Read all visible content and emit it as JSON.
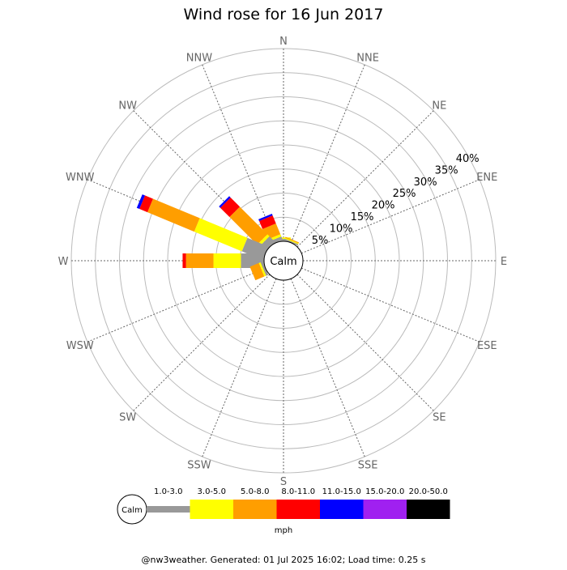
{
  "chart_data": {
    "type": "windrose",
    "title": "Wind rose for 16 Jun 2017",
    "directions": [
      "N",
      "NNE",
      "NE",
      "ENE",
      "E",
      "ESE",
      "SE",
      "SSE",
      "S",
      "SSW",
      "SW",
      "WSW",
      "W",
      "WNW",
      "NW",
      "NNW"
    ],
    "radial_ticks": [
      "5%",
      "10%",
      "15%",
      "20%",
      "25%",
      "30%",
      "35%",
      "40%"
    ],
    "rmax_percent": 40,
    "calm_label": "Calm",
    "speed_bins": [
      {
        "label": "1.0-3.0",
        "color": "#999999"
      },
      {
        "label": "3.0-5.0",
        "color": "#ffff00"
      },
      {
        "label": "5.0-8.0",
        "color": "#ff9e00"
      },
      {
        "label": "8.0-11.0",
        "color": "#ff0000"
      },
      {
        "label": "11.0-15.0",
        "color": "#0000ff"
      },
      {
        "label": "15.0-20.0",
        "color": "#a020f0"
      },
      {
        "label": "20.0-50.0",
        "color": "#000000"
      }
    ],
    "units": "mph",
    "series": [
      {
        "direction": "N",
        "values": [
          0.5,
          0.3,
          0,
          0,
          0,
          0,
          0
        ]
      },
      {
        "direction": "NNE",
        "values": [
          0.3,
          0.2,
          0.2,
          0,
          0,
          0,
          0
        ]
      },
      {
        "direction": "NNW",
        "values": [
          0.8,
          0.5,
          2.4,
          1.8,
          0.4,
          0,
          0
        ]
      },
      {
        "direction": "NW",
        "values": [
          1.6,
          0.6,
          8.1,
          2.7,
          0.4,
          0,
          0
        ]
      },
      {
        "direction": "WNW",
        "values": [
          4.7,
          10.7,
          10.5,
          1.8,
          0.6,
          0,
          0
        ]
      },
      {
        "direction": "W",
        "values": [
          4.8,
          5.7,
          5.7,
          0.7,
          0,
          0,
          0
        ]
      },
      {
        "direction": "WSW",
        "values": [
          0.5,
          0.4,
          2.0,
          0,
          0,
          0,
          0
        ]
      }
    ],
    "footer": "@nw3weather. Generated: 01 Jul 2025 16:02; Load time: 0.25 s"
  }
}
